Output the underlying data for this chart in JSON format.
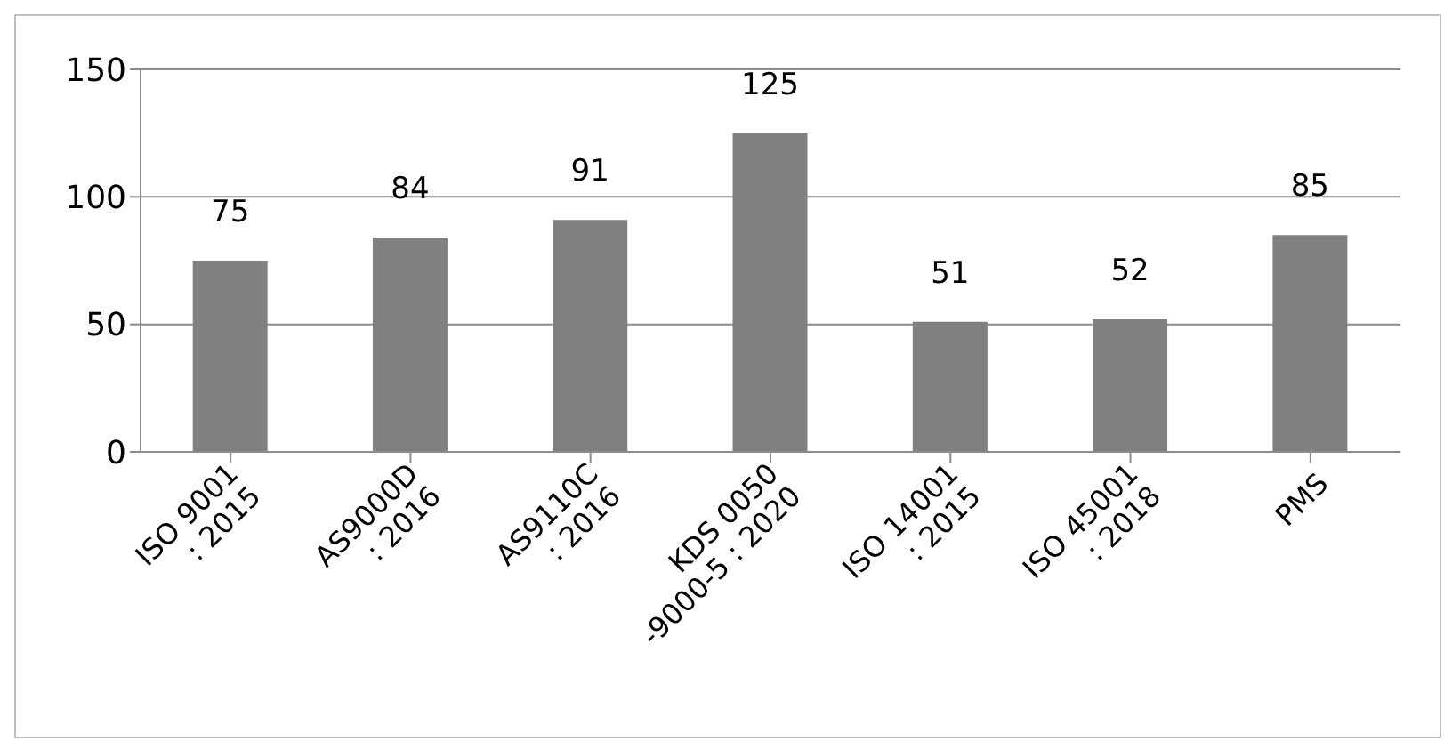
{
  "chart_data": {
    "type": "bar",
    "categories": [
      "ISO 9001\n: 2015",
      "AS9000D\n: 2016",
      "AS9110C\n: 2016",
      "KDS 0050\n-9000-5 : 2020",
      "ISO 14001\n: 2015",
      "ISO 45001\n: 2018",
      "PMS"
    ],
    "values": [
      75,
      84,
      91,
      125,
      51,
      52,
      85
    ],
    "color": "#808080",
    "ylim": [
      0,
      150
    ],
    "yticks": [
      0,
      50,
      100,
      150
    ],
    "grid": "y",
    "data_labels": true
  }
}
